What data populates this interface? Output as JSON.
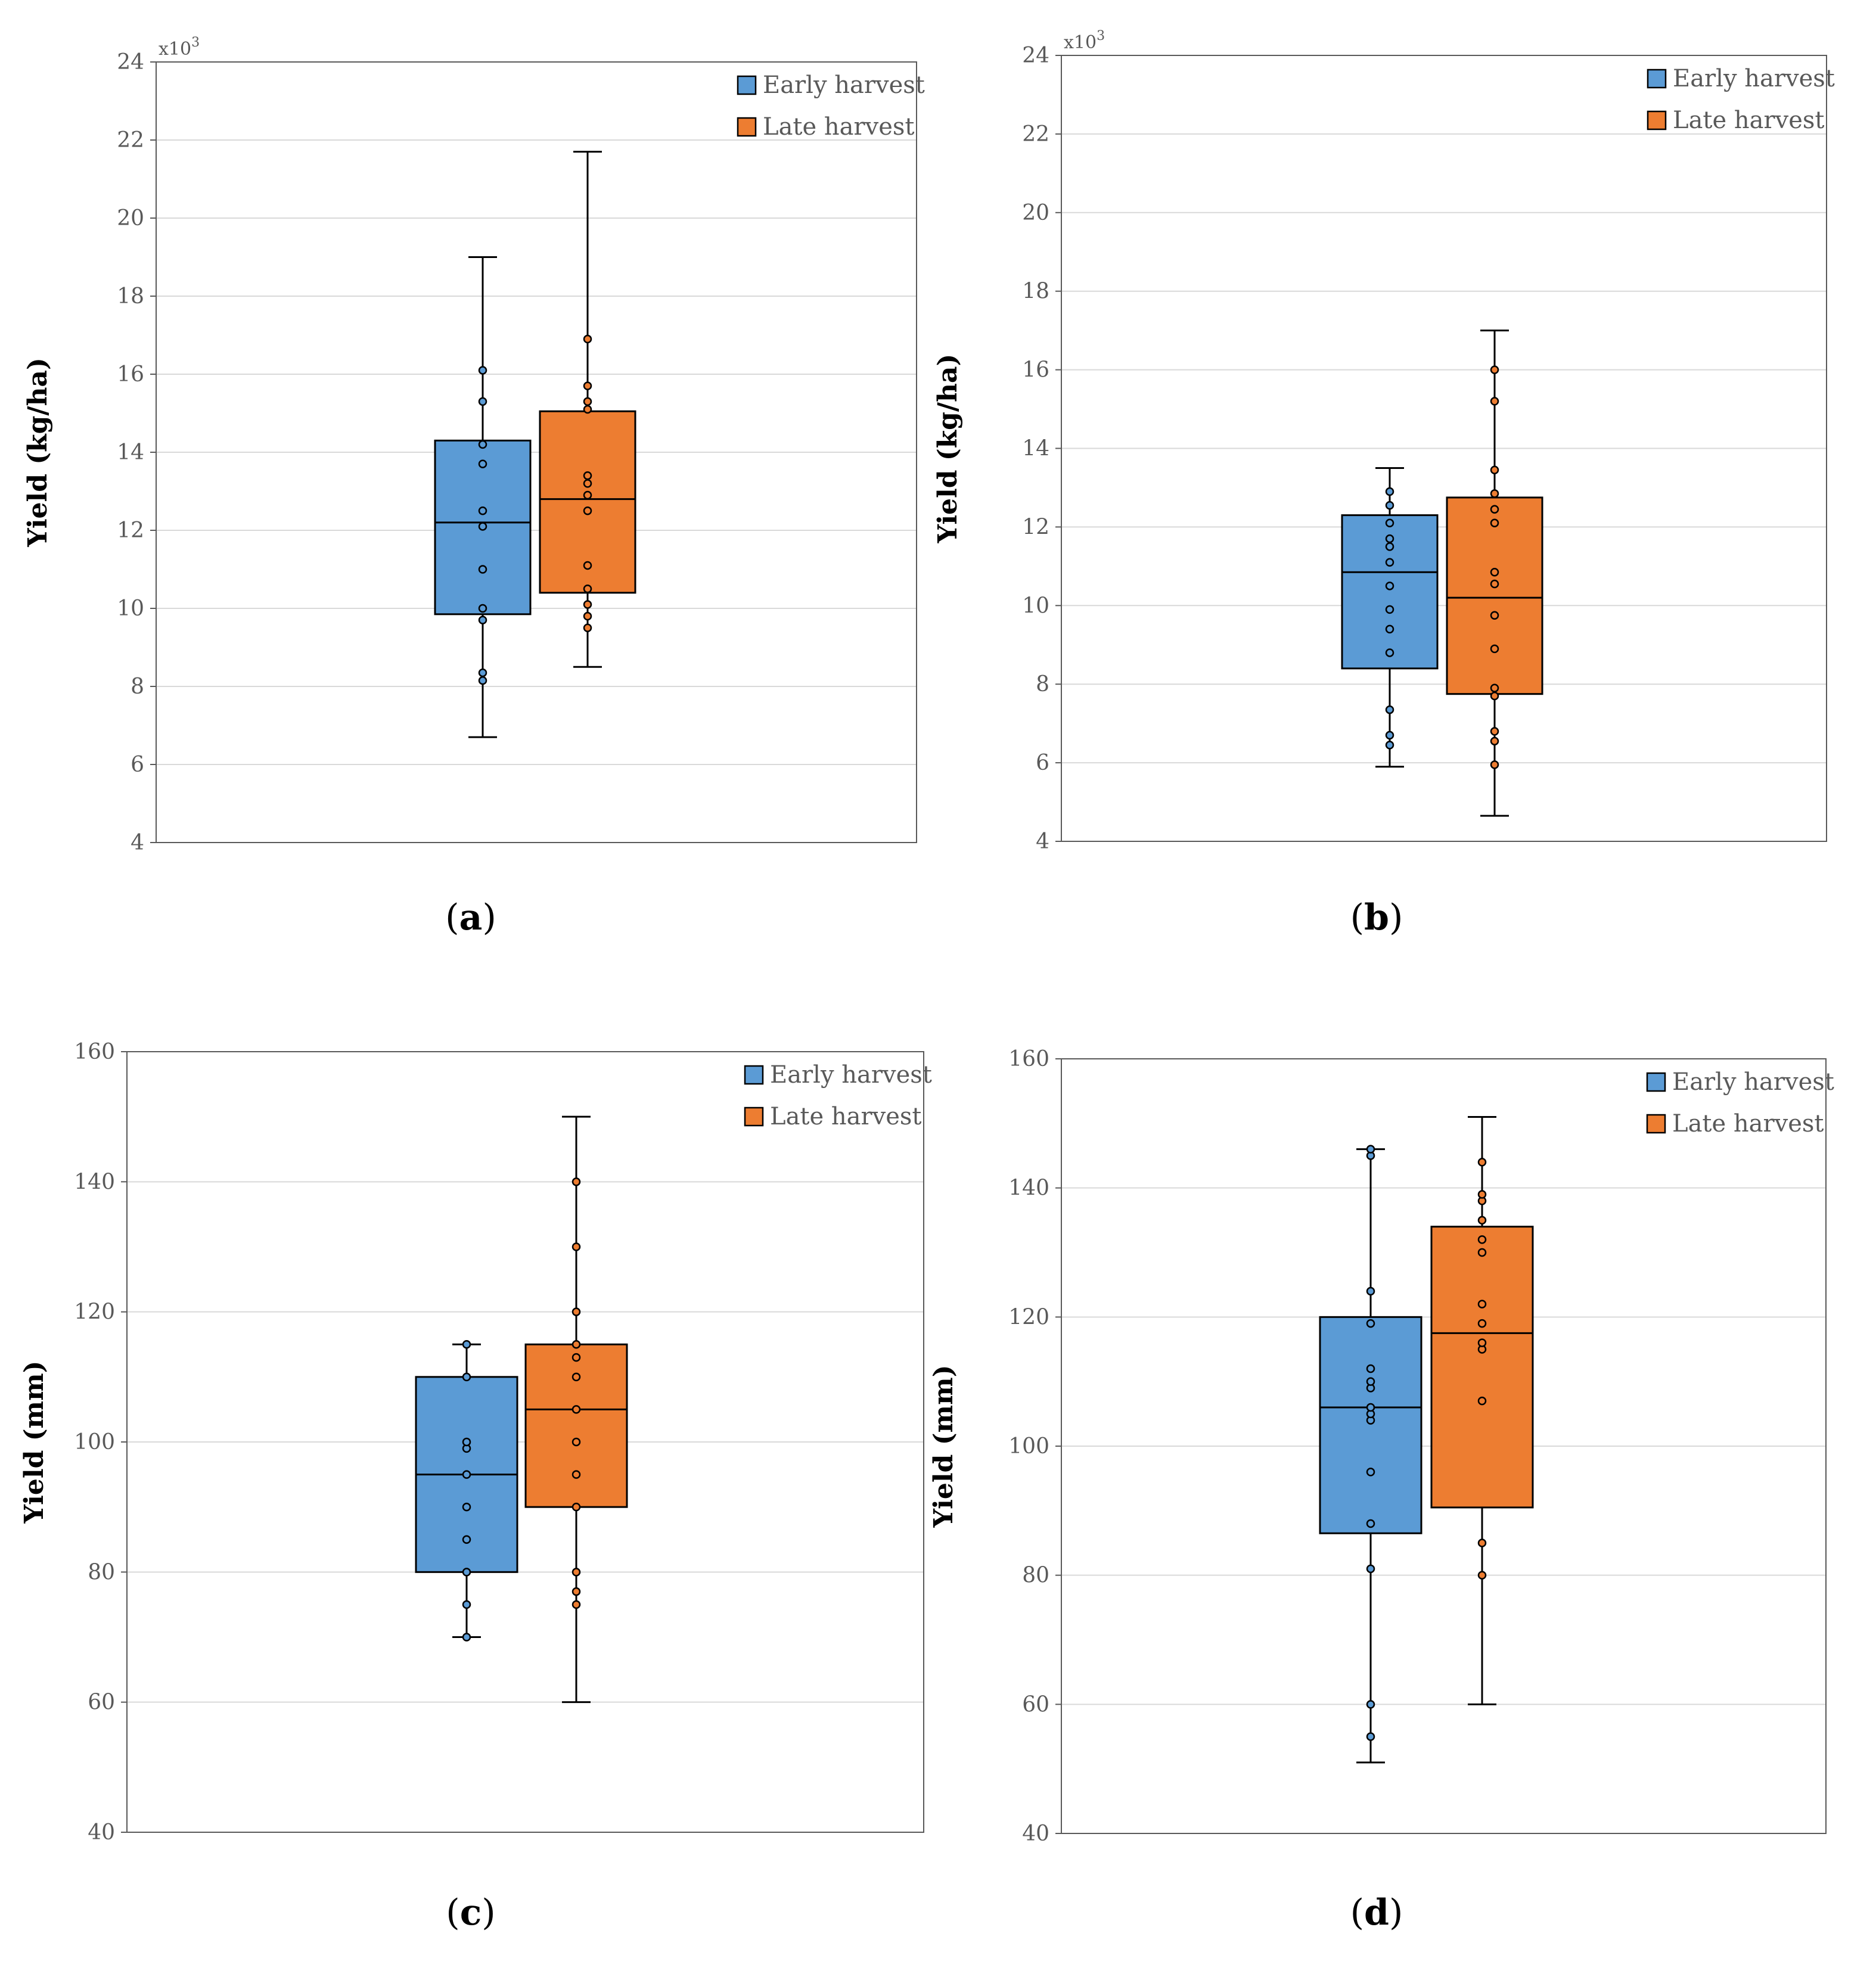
{
  "legend": {
    "early_label": "Early harvest",
    "late_label": "Late harvest"
  },
  "colors": {
    "early": "#5B9BD5",
    "late": "#ED7D31",
    "grid": "#D9D9D9",
    "axis": "#595959"
  },
  "chart_data": [
    {
      "type": "box",
      "panel_label": "(a)",
      "ylabel": "Yield (kg/ha)",
      "multiplier": "x10",
      "multiplier_exponent": "3",
      "ylim": [
        4,
        24
      ],
      "yticks": [
        4,
        6,
        8,
        10,
        12,
        14,
        16,
        18,
        20,
        22,
        24
      ],
      "grid": true,
      "legend_position": "top-right",
      "series": [
        {
          "name": "Early harvest",
          "min": 6.7,
          "q1": 9.85,
          "median": 12.2,
          "q3": 14.3,
          "max": 19.0,
          "points": [
            8.15,
            8.35,
            9.7,
            10.0,
            11.0,
            12.1,
            12.5,
            13.7,
            14.2,
            15.3,
            16.1
          ]
        },
        {
          "name": "Late harvest",
          "min": 8.5,
          "q1": 10.4,
          "median": 12.8,
          "q3": 15.05,
          "max": 21.7,
          "points": [
            9.5,
            9.8,
            10.1,
            10.5,
            11.1,
            12.5,
            12.9,
            13.2,
            13.4,
            15.1,
            15.3,
            15.7,
            16.9
          ]
        }
      ]
    },
    {
      "type": "box",
      "panel_label": "(b)",
      "ylabel": "Yield (kg/ha)",
      "multiplier": "x10",
      "multiplier_exponent": "3",
      "ylim": [
        4,
        24
      ],
      "yticks": [
        4,
        6,
        8,
        10,
        12,
        14,
        16,
        18,
        20,
        22,
        24
      ],
      "grid": true,
      "legend_position": "top-right",
      "series": [
        {
          "name": "Early harvest",
          "min": 5.9,
          "q1": 8.4,
          "median": 10.85,
          "q3": 12.3,
          "max": 13.5,
          "points": [
            6.45,
            6.7,
            7.35,
            8.8,
            9.4,
            9.9,
            10.5,
            11.1,
            11.5,
            11.7,
            12.1,
            12.55,
            12.9
          ]
        },
        {
          "name": "Late harvest",
          "min": 4.65,
          "q1": 7.75,
          "median": 10.2,
          "q3": 12.75,
          "max": 17.0,
          "points": [
            5.95,
            6.55,
            6.8,
            7.7,
            7.9,
            8.9,
            9.75,
            10.55,
            10.85,
            12.1,
            12.45,
            12.85,
            13.45,
            15.2,
            16.0
          ]
        }
      ]
    },
    {
      "type": "box",
      "panel_label": "(c)",
      "ylabel": "Yield (mm)",
      "ylim": [
        40,
        160
      ],
      "yticks": [
        40,
        60,
        80,
        100,
        120,
        140,
        160
      ],
      "grid": true,
      "legend_position": "top-right",
      "series": [
        {
          "name": "Early harvest",
          "min": 70,
          "q1": 80,
          "median": 95,
          "q3": 110,
          "max": 115,
          "points": [
            70,
            75,
            80,
            85,
            90,
            95,
            99,
            100,
            110,
            115
          ]
        },
        {
          "name": "Late harvest",
          "min": 60,
          "q1": 90,
          "median": 105,
          "q3": 115,
          "max": 150,
          "points": [
            75,
            77,
            80,
            90,
            95,
            100,
            105,
            110,
            113,
            115,
            120,
            130,
            140
          ]
        }
      ]
    },
    {
      "type": "box",
      "panel_label": "(d)",
      "ylabel": "Yield (mm)",
      "ylim": [
        40,
        160
      ],
      "yticks": [
        40,
        60,
        80,
        100,
        120,
        140,
        160
      ],
      "grid": true,
      "legend_position": "top-right",
      "series": [
        {
          "name": "Early harvest",
          "min": 51,
          "q1": 86.5,
          "median": 106,
          "q3": 120,
          "max": 146,
          "points": [
            55,
            60,
            81,
            88,
            96,
            104,
            105,
            106,
            109,
            110,
            112,
            119,
            124,
            145,
            146
          ]
        },
        {
          "name": "Late harvest",
          "min": 60,
          "q1": 90.5,
          "median": 117.5,
          "q3": 134,
          "max": 151,
          "points": [
            80,
            85,
            107,
            115,
            116,
            119,
            122,
            130,
            132,
            135,
            138,
            139,
            144
          ]
        }
      ]
    }
  ]
}
